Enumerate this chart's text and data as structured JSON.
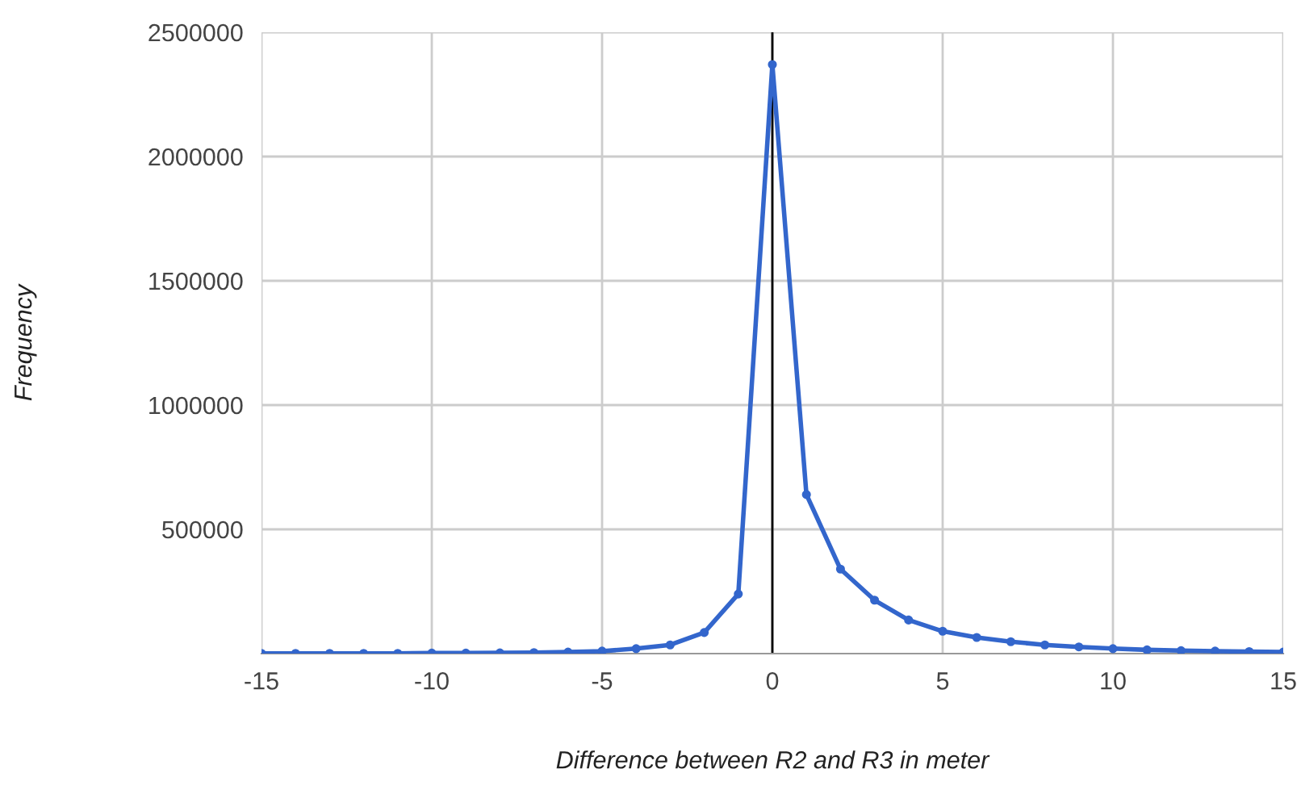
{
  "chart_data": {
    "type": "line",
    "xlabel": "Difference between R2 and R3 in meter",
    "ylabel": "Frequency",
    "x": [
      -15,
      -14,
      -13,
      -12,
      -11,
      -10,
      -9,
      -8,
      -7,
      -6,
      -5,
      -4,
      -3,
      -2,
      -1,
      0,
      1,
      2,
      3,
      4,
      5,
      6,
      7,
      8,
      9,
      10,
      11,
      12,
      13,
      14,
      15
    ],
    "series": [
      {
        "color": "#3366cc",
        "values": [
          1000,
          1000,
          1000,
          1000,
          1000,
          2000,
          2000,
          3000,
          4000,
          6000,
          10000,
          20000,
          35000,
          85000,
          240000,
          2370000,
          640000,
          340000,
          215000,
          135000,
          90000,
          65000,
          48000,
          35000,
          27000,
          20000,
          15000,
          12000,
          10000,
          8000,
          6000
        ]
      }
    ],
    "xlim": [
      -15,
      15
    ],
    "xticks": [
      -15,
      -10,
      -5,
      0,
      5,
      10,
      15
    ],
    "ylim": [
      0,
      2500000
    ],
    "yticks": [
      500000,
      1000000,
      1500000,
      2000000,
      2500000
    ],
    "ref_lines": [
      {
        "axis": "x",
        "value": 0,
        "color": "#000000"
      }
    ],
    "grid": true,
    "marker": "circle",
    "line_style": "solid"
  }
}
